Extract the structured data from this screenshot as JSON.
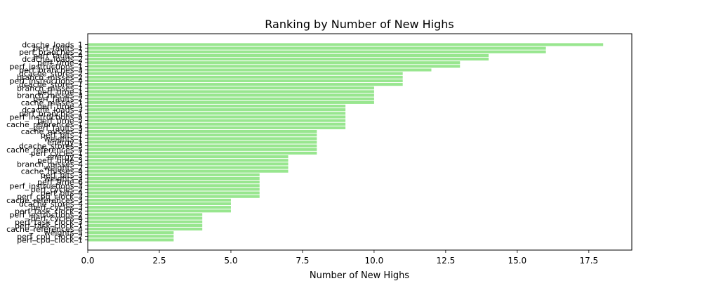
{
  "chart_data": {
    "type": "bar",
    "orientation": "horizontal",
    "title": "Ranking by Number of New Highs",
    "xlabel": "Number of New Highs",
    "ylabel": "",
    "xlim": [
      0,
      19
    ],
    "x_ticks": [
      0.0,
      2.5,
      5.0,
      7.5,
      10.0,
      12.5,
      15.0,
      17.5
    ],
    "x_tick_labels": [
      "0.0",
      "2.5",
      "5.0",
      "7.5",
      "10.0",
      "12.5",
      "15.0",
      "17.5"
    ],
    "bar_color": "#98e68f",
    "grid": false,
    "legend": "none",
    "categories": [
      "dcache_loads_1",
      "perf_faults_1",
      "perf_branches_2",
      "perf_faults_4",
      "dcache_loads_2",
      "perf_time_2",
      "perf_instructions_1",
      "perf_branches_3",
      "dcache_stores_2",
      "branch_misses_2",
      "perf_instructions_4",
      "dcache_stores_1",
      "branch_misses_1",
      "perf_time_1",
      "branch_misses_3",
      "perf_faults_2",
      "cache_misses_1",
      "perf_time_4",
      "dcache_loads_3",
      "perf_branches_1",
      "perf_instructions_5",
      "perf_time_5",
      "cache_references_1",
      "perf_faults_3",
      "cache_misses_3",
      "perf_bits_1",
      "weights_1",
      "energy_1",
      "dcache_stores_3",
      "cache_references_5",
      "perf_cycles_1",
      "energy_2",
      "perf_time_3",
      "branch_misses_4",
      "weights_2",
      "cache_misses_4",
      "perf_bits_3",
      "weights_3",
      "perf_time_6",
      "perf_instructions_3",
      "perf_cycles_2",
      "perf_bits_4",
      "perf_cpu_clock_3",
      "cache_references_3",
      "dcache_stores_4",
      "perf_cycles_3",
      "perf_task_clock_2",
      "perf_instructions_2",
      "perf_cycles_4",
      "perf_task_clock_3",
      "perf_task_clock_1",
      "cache_references_4",
      "weights_5",
      "perf_cpu_clock_2",
      "perf_cpu_clock_1"
    ],
    "values": [
      18,
      16,
      16,
      14,
      14,
      13,
      13,
      12,
      11,
      11,
      11,
      11,
      10,
      10,
      10,
      10,
      10,
      9,
      9,
      9,
      9,
      9,
      9,
      9,
      8,
      8,
      8,
      8,
      8,
      8,
      8,
      7,
      7,
      7,
      7,
      7,
      6,
      6,
      6,
      6,
      6,
      6,
      6,
      5,
      5,
      5,
      5,
      4,
      4,
      4,
      4,
      4,
      3,
      3,
      3
    ]
  }
}
